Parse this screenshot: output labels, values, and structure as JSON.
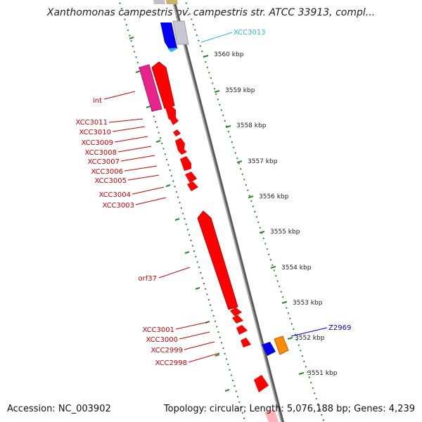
{
  "title": "Xanthomonas campestris pv. campestris str. ATCC 33913, compl...",
  "accession": "Accession: NC_003902",
  "info": "Topology: circular; Length: 5,076,188 bp; Genes: 4,239",
  "colors": {
    "forward_gene": "#ff0000",
    "reverse_gene": "#0000ff",
    "gene_label": "#cc0000",
    "tick": "#2a8a2a",
    "backbone": "#888888",
    "highlight_label": "#29b6e8",
    "other_label": "#0000cc",
    "magenta_feature": "#e8248c",
    "orange_feature": "#ff8c00",
    "grey_feature": "#c0c0c8",
    "olive_feature": "#c8b464"
  },
  "scale_labels": [
    "3560 kbp",
    "3559 kbp",
    "3558 kbp",
    "3557 kbp",
    "3556 kbp",
    "3555 kbp",
    "3554 kbp",
    "3553 kbp",
    "3552 kbp",
    "3551 kbp"
  ],
  "gene_labels_left": [
    "int",
    "XCC3011",
    "XCC3010",
    "XCC3009",
    "XCC3008",
    "XCC3007",
    "XCC3006",
    "XCC3005",
    "XCC3004",
    "XCC3003",
    "orf37",
    "XCC3001",
    "XCC3000",
    "XCC2999",
    "XCC2998"
  ],
  "gene_labels_right": [
    "XCC3013",
    "Z2969"
  ]
}
